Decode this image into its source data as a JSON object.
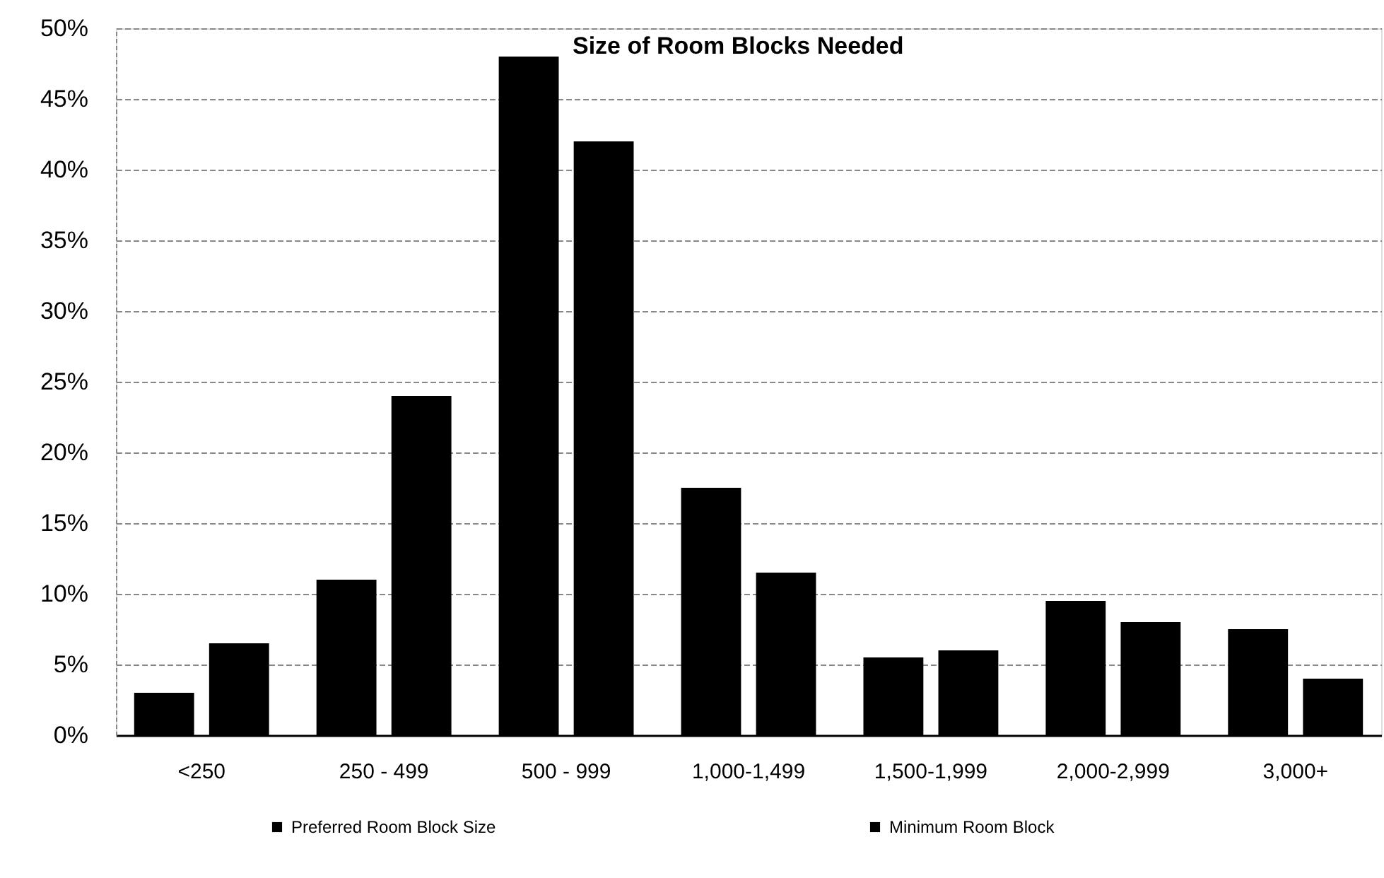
{
  "chart_data": {
    "type": "bar",
    "title": "Size of Room Blocks Needed",
    "categories": [
      "<250",
      "250 - 499",
      "500 - 999",
      "1,000-1,499",
      "1,500-1,999",
      "2,000-2,999",
      "3,000+"
    ],
    "series": [
      {
        "name": "Preferred Room Block Size",
        "color": "#000000",
        "values": [
          3,
          11,
          48,
          17.5,
          5.5,
          9.5,
          7.5
        ]
      },
      {
        "name": "Minimum Room Block",
        "color": "#000000",
        "values": [
          6.5,
          24,
          42,
          11.5,
          6,
          8,
          4
        ]
      }
    ],
    "ylim": [
      0,
      50
    ],
    "yticks": [
      {
        "value": 0,
        "label": "0%"
      },
      {
        "value": 5,
        "label": "5%"
      },
      {
        "value": 10,
        "label": "10%"
      },
      {
        "value": 15,
        "label": "15%"
      },
      {
        "value": 20,
        "label": "20%"
      },
      {
        "value": 25,
        "label": "25%"
      },
      {
        "value": 30,
        "label": "30%"
      },
      {
        "value": 35,
        "label": "35%"
      },
      {
        "value": 40,
        "label": "40%"
      },
      {
        "value": 45,
        "label": "45%"
      },
      {
        "value": 50,
        "label": "50%"
      }
    ],
    "grid": "y",
    "legend": "bottom"
  }
}
